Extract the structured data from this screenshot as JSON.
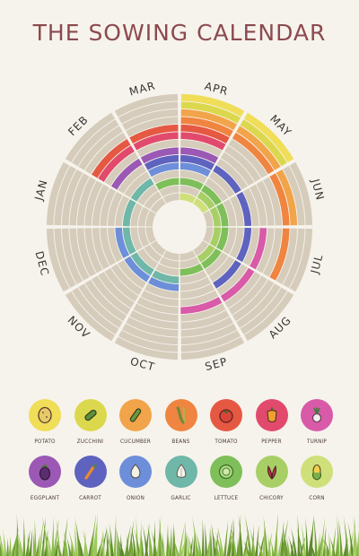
{
  "title": "THE SOWING CALENDAR",
  "months": [
    "JAN",
    "FEB",
    "MAR",
    "APR",
    "MAY",
    "JUN",
    "JUL",
    "AUG",
    "SEP",
    "OCT",
    "NOV",
    "DEC"
  ],
  "vegetables": [
    {
      "key": "potato",
      "label": "POTATO",
      "color": "#f0dd58",
      "icon": "potato-icon"
    },
    {
      "key": "zucchini",
      "label": "ZUCCHINI",
      "color": "#dcd84e",
      "icon": "zucchini-icon"
    },
    {
      "key": "cucumber",
      "label": "CUCUMBER",
      "color": "#f2a44a",
      "icon": "cucumber-icon"
    },
    {
      "key": "beans",
      "label": "BEANS",
      "color": "#ef8540",
      "icon": "beans-icon"
    },
    {
      "key": "tomato",
      "label": "TOMATO",
      "color": "#e55842",
      "icon": "tomato-icon"
    },
    {
      "key": "pepper",
      "label": "PEPPER",
      "color": "#e14a6c",
      "icon": "pepper-icon"
    },
    {
      "key": "turnip",
      "label": "TURNIP",
      "color": "#d85aa8",
      "icon": "turnip-icon"
    },
    {
      "key": "eggplant",
      "label": "EGGPLANT",
      "color": "#9b58b5",
      "icon": "eggplant-icon"
    },
    {
      "key": "carrot",
      "label": "CARROT",
      "color": "#5e63c0",
      "icon": "carrot-icon"
    },
    {
      "key": "onion",
      "label": "ONION",
      "color": "#6d8fda",
      "icon": "onion-icon"
    },
    {
      "key": "garlic",
      "label": "GARLIC",
      "color": "#6fb7a8",
      "icon": "garlic-icon"
    },
    {
      "key": "lettuce",
      "label": "LETTUCE",
      "color": "#7ebf5a",
      "icon": "lettuce-icon"
    },
    {
      "key": "chicory",
      "label": "CHICORY",
      "color": "#a8cf66",
      "icon": "chicory-icon"
    },
    {
      "key": "corn",
      "label": "CORN",
      "color": "#cfe07a",
      "icon": "corn-icon"
    }
  ],
  "sowing": {
    "potato": [
      3,
      4
    ],
    "zucchini": [
      3,
      4
    ],
    "cucumber": [
      3,
      4,
      5
    ],
    "beans": [
      3,
      4,
      5,
      6
    ],
    "tomato": [
      1,
      2,
      3
    ],
    "pepper": [
      1,
      2,
      3
    ],
    "turnip": [
      6,
      7,
      8
    ],
    "eggplant": [
      1,
      2,
      3
    ],
    "carrot": [
      2,
      3,
      4,
      5,
      6,
      7
    ],
    "onion": [
      2,
      3,
      9,
      10,
      11
    ],
    "garlic": [
      0,
      1,
      9,
      10,
      11
    ],
    "lettuce": [
      2,
      3,
      4,
      5,
      6,
      7,
      8
    ],
    "chicory": [
      4,
      5,
      6,
      7
    ],
    "corn": [
      3,
      4
    ]
  },
  "colors": {
    "background": "#f6f3ec",
    "empty_band": "#d6ccbb",
    "title": "#8b4a4f",
    "month_text": "#3b3433",
    "grass": "#7fae3d"
  }
}
